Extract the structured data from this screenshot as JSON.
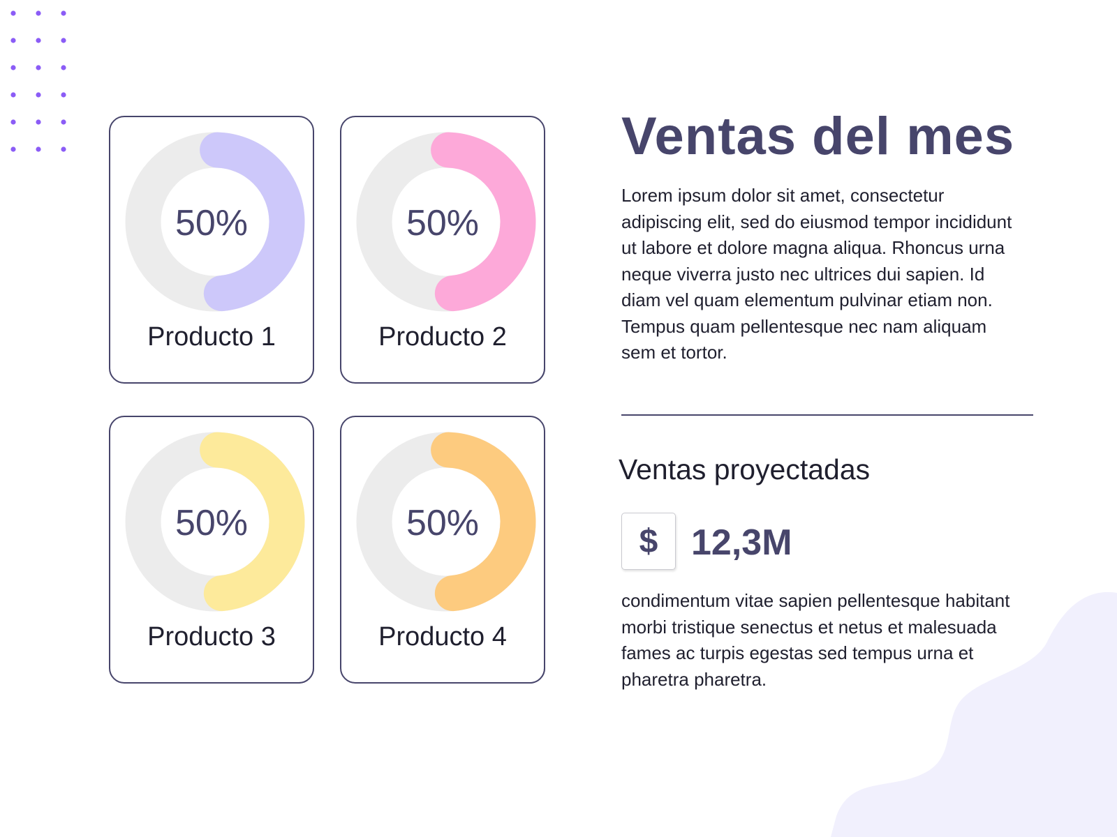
{
  "header": {
    "title": "Ventas del mes",
    "description": "Lorem ipsum dolor sit amet, consectetur adipiscing elit, sed do eiusmod tempor incididunt ut labore et dolore magna aliqua. Rhoncus urna neque viverra justo nec ultrices dui sapien. Id diam vel quam elementum pulvinar etiam non. Tempus quam pellentesque nec nam aliquam sem et tortor."
  },
  "projection": {
    "subtitle": "Ventas proyectadas",
    "currency_symbol": "$",
    "amount": "12,3M",
    "description": "condimentum vitae sapien pellentesque habitant morbi tristique senectus et netus et malesuada fames ac turpis egestas sed tempus urna et pharetra pharetra."
  },
  "colors": {
    "primary_text": "#47456b",
    "track": "#ececec",
    "dots": "#8b5cf6",
    "blob": "#f1f0fd"
  },
  "chart_data": [
    {
      "type": "pie",
      "title": "Producto 1",
      "label": "50%",
      "value": 50,
      "max": 100,
      "color": "#cdc8fa"
    },
    {
      "type": "pie",
      "title": "Producto 2",
      "label": "50%",
      "value": 50,
      "max": 100,
      "color": "#fda9d9"
    },
    {
      "type": "pie",
      "title": "Producto 3",
      "label": "50%",
      "value": 50,
      "max": 100,
      "color": "#fdea9b"
    },
    {
      "type": "pie",
      "title": "Producto 4",
      "label": "50%",
      "value": 50,
      "max": 100,
      "color": "#fdcb7f"
    }
  ]
}
